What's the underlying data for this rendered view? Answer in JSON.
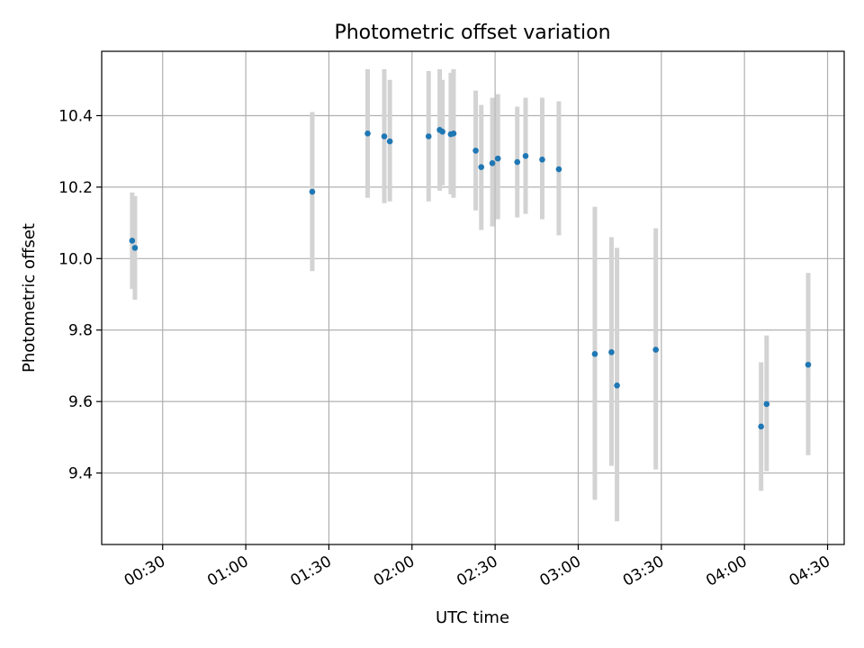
{
  "chart_data": {
    "type": "scatter",
    "title": "Photometric offset variation",
    "xlabel": "UTC time",
    "ylabel": "Photometric offset",
    "xlim": [
      "00:08",
      "04:36"
    ],
    "ylim": [
      9.2,
      10.58
    ],
    "x_ticks": [
      "00:30",
      "01:00",
      "01:30",
      "02:00",
      "02:30",
      "03:00",
      "03:30",
      "04:00",
      "04:30"
    ],
    "y_ticks": [
      9.4,
      9.6,
      9.8,
      10.0,
      10.2,
      10.4
    ],
    "y_tick_labels": [
      "9.4",
      "9.6",
      "9.8",
      "10.0",
      "10.2",
      "10.4"
    ],
    "grid": true,
    "point_color": "#1f77b4",
    "errorbar_color": "#d3d3d3",
    "series": [
      {
        "points": [
          {
            "x": "00:19",
            "y": 10.05,
            "lo": 9.915,
            "hi": 10.185
          },
          {
            "x": "00:20",
            "y": 10.03,
            "lo": 9.885,
            "hi": 10.175
          },
          {
            "x": "01:24",
            "y": 10.187,
            "lo": 9.965,
            "hi": 10.41
          },
          {
            "x": "01:44",
            "y": 10.35,
            "lo": 10.17,
            "hi": 10.53
          },
          {
            "x": "01:50",
            "y": 10.342,
            "lo": 10.155,
            "hi": 10.53
          },
          {
            "x": "01:52",
            "y": 10.328,
            "lo": 10.16,
            "hi": 10.5
          },
          {
            "x": "02:06",
            "y": 10.342,
            "lo": 10.16,
            "hi": 10.525
          },
          {
            "x": "02:10",
            "y": 10.36,
            "lo": 10.19,
            "hi": 10.53
          },
          {
            "x": "02:11",
            "y": 10.355,
            "lo": 10.205,
            "hi": 10.5
          },
          {
            "x": "02:14",
            "y": 10.348,
            "lo": 10.18,
            "hi": 10.52
          },
          {
            "x": "02:15",
            "y": 10.35,
            "lo": 10.17,
            "hi": 10.53
          },
          {
            "x": "02:23",
            "y": 10.302,
            "lo": 10.135,
            "hi": 10.47
          },
          {
            "x": "02:25",
            "y": 10.256,
            "lo": 10.08,
            "hi": 10.43
          },
          {
            "x": "02:29",
            "y": 10.267,
            "lo": 10.09,
            "hi": 10.45
          },
          {
            "x": "02:31",
            "y": 10.28,
            "lo": 10.11,
            "hi": 10.46
          },
          {
            "x": "02:38",
            "y": 10.27,
            "lo": 10.115,
            "hi": 10.425
          },
          {
            "x": "02:41",
            "y": 10.287,
            "lo": 10.125,
            "hi": 10.45
          },
          {
            "x": "02:47",
            "y": 10.277,
            "lo": 10.11,
            "hi": 10.45
          },
          {
            "x": "02:53",
            "y": 10.25,
            "lo": 10.065,
            "hi": 10.44
          },
          {
            "x": "03:06",
            "y": 9.733,
            "lo": 9.325,
            "hi": 10.145
          },
          {
            "x": "03:12",
            "y": 9.738,
            "lo": 9.42,
            "hi": 10.06
          },
          {
            "x": "03:14",
            "y": 9.645,
            "lo": 9.265,
            "hi": 10.03
          },
          {
            "x": "03:28",
            "y": 9.745,
            "lo": 9.41,
            "hi": 10.085
          },
          {
            "x": "04:06",
            "y": 9.53,
            "lo": 9.35,
            "hi": 9.71
          },
          {
            "x": "04:08",
            "y": 9.593,
            "lo": 9.405,
            "hi": 9.785
          },
          {
            "x": "04:23",
            "y": 9.703,
            "lo": 9.45,
            "hi": 9.96
          }
        ]
      }
    ]
  }
}
